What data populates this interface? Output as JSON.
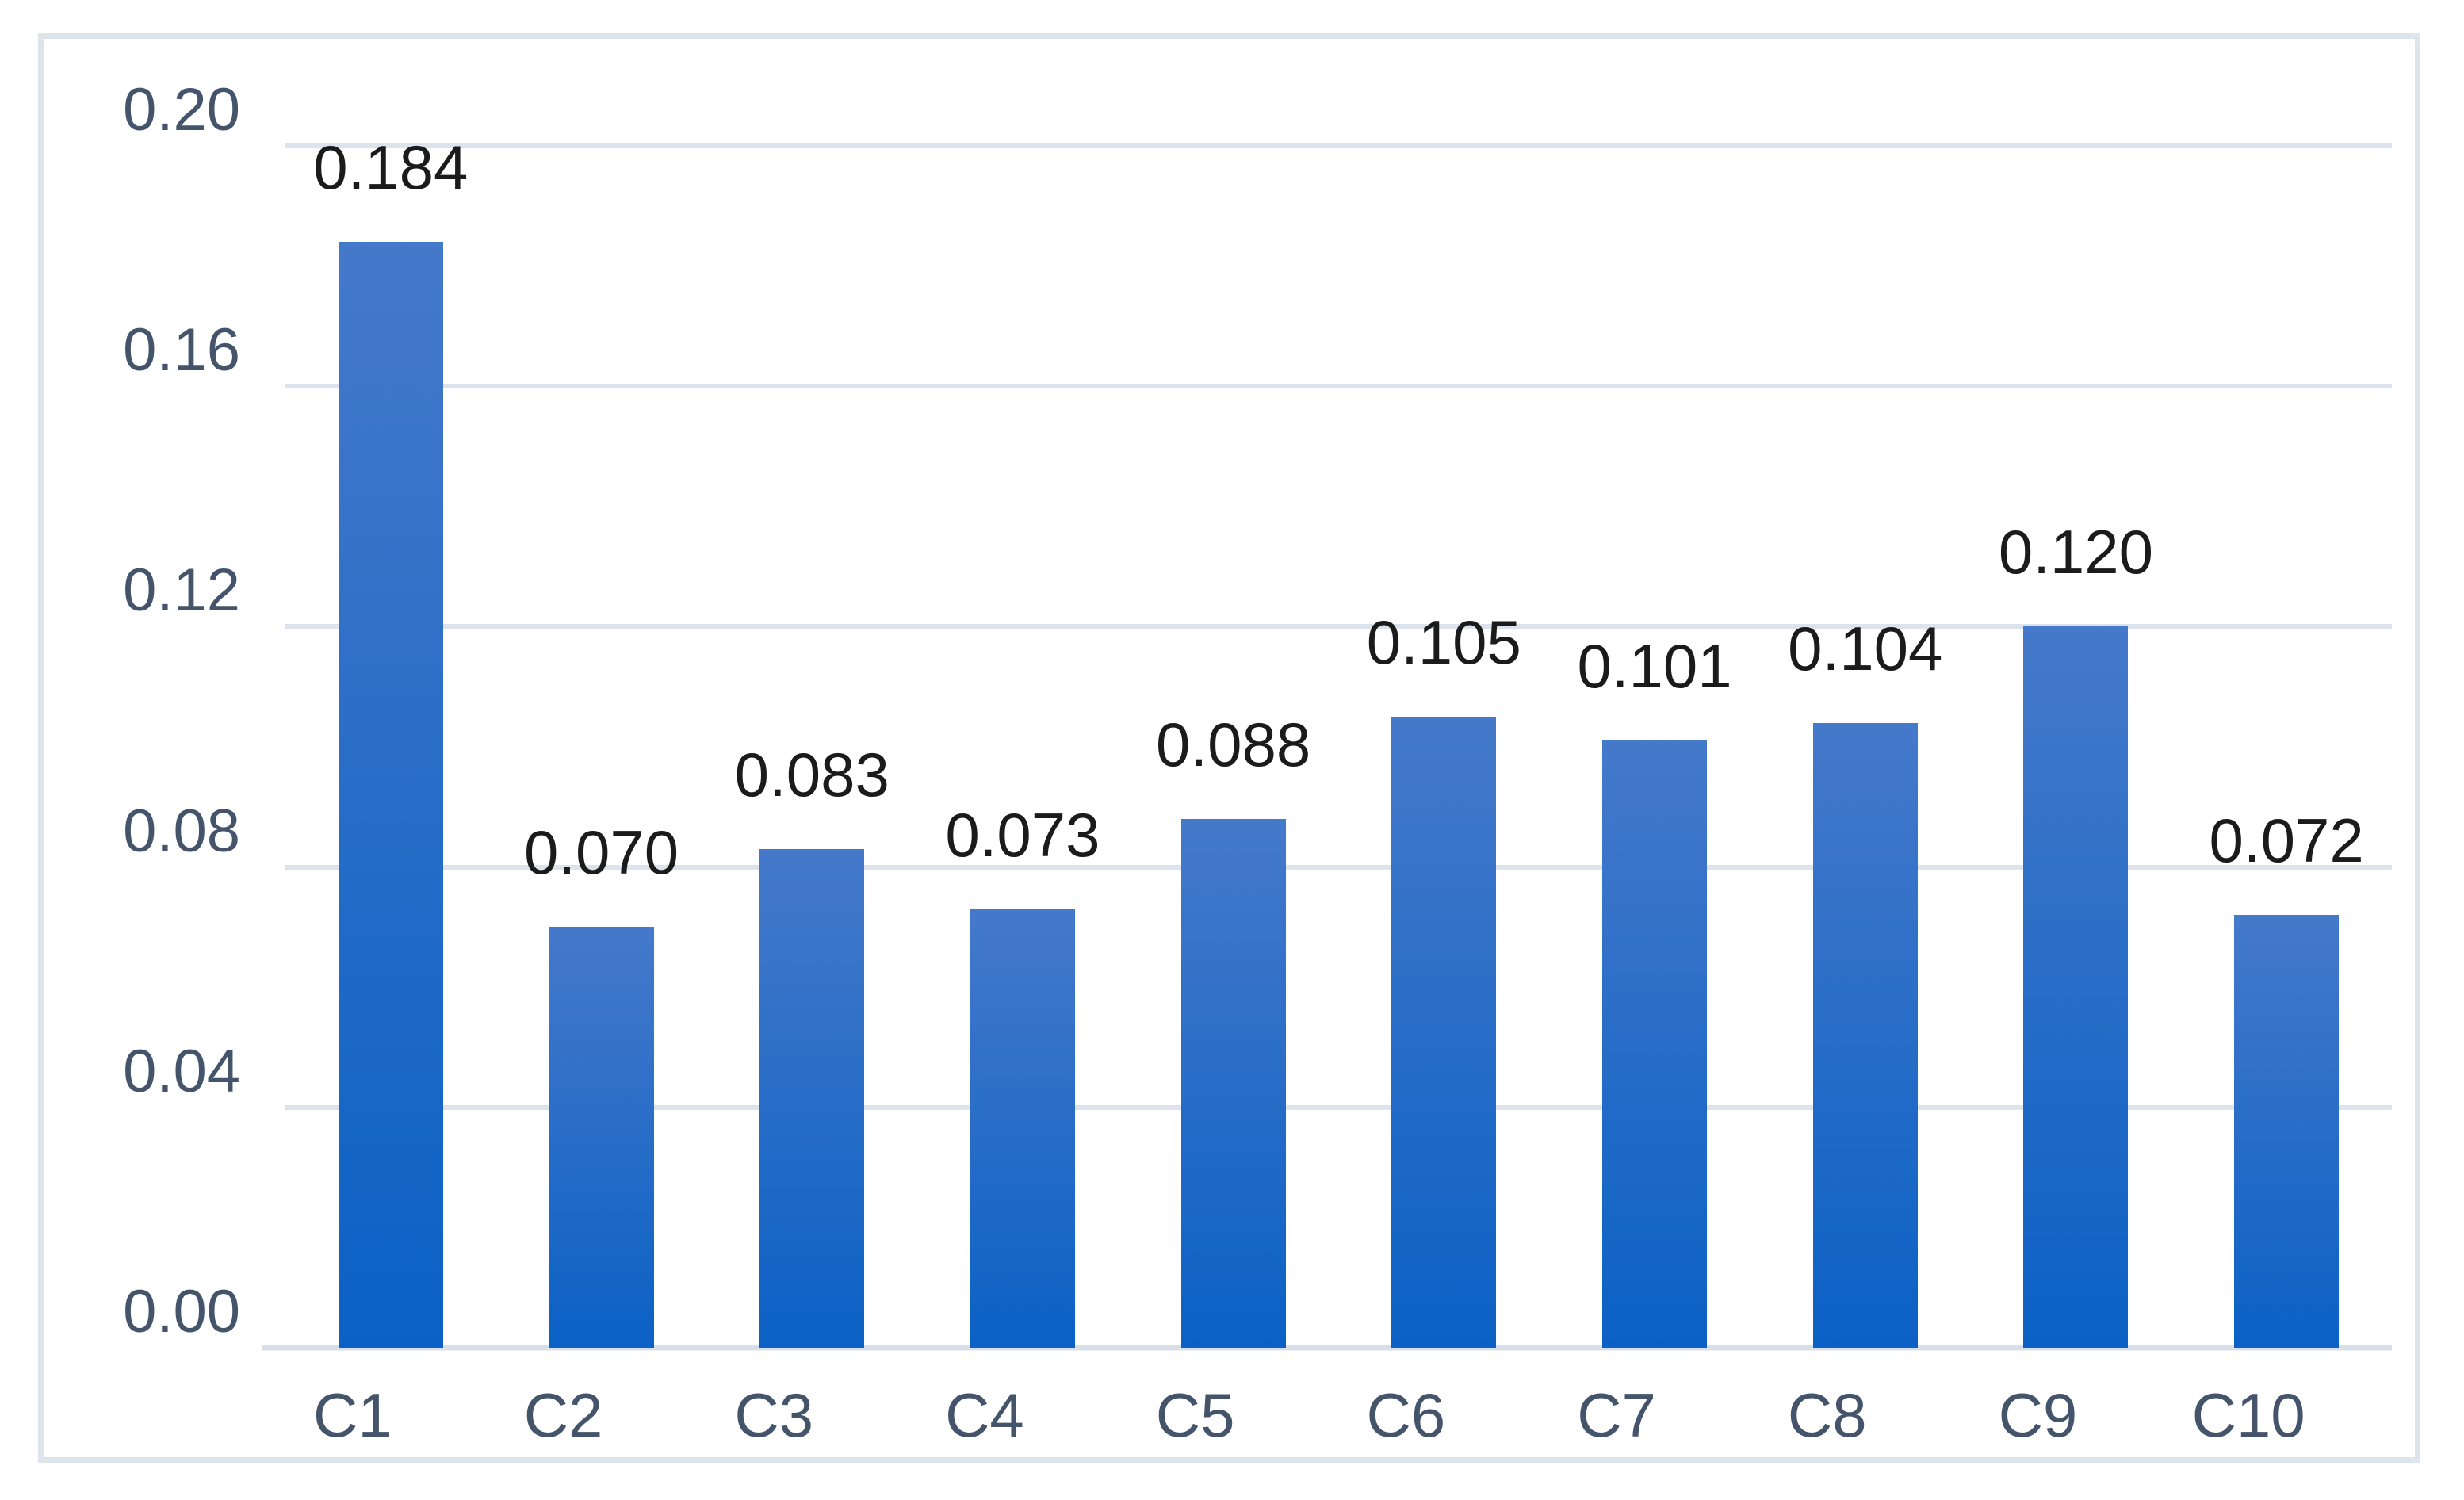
{
  "chart_data": {
    "type": "bar",
    "title": "",
    "xlabel": "",
    "ylabel": "",
    "categories": [
      "C1",
      "C2",
      "C3",
      "C4",
      "C5",
      "C6",
      "C7",
      "C8",
      "C9",
      "C10"
    ],
    "values": [
      0.184,
      0.07,
      0.083,
      0.073,
      0.088,
      0.105,
      0.101,
      0.104,
      0.12,
      0.072
    ],
    "data_labels": [
      "0.184",
      "0.070",
      "0.083",
      "0.073",
      "0.088",
      "0.105",
      "0.101",
      "0.104",
      "0.120",
      "0.072"
    ],
    "ylim": [
      0,
      0.2
    ],
    "y_ticks": [
      "0.20",
      "0.16",
      "0.12",
      "0.08",
      "0.04",
      "0.00"
    ],
    "y_tick_values": [
      0.2,
      0.16,
      0.12,
      0.08,
      0.04,
      0.0
    ],
    "grid": true,
    "legend_position": "none",
    "colors": {
      "bar_gradient_top": "#4579ca",
      "bar_gradient_bottom": "#0b61c5",
      "axis_tick_label": "#44546a",
      "data_label": "#1b1b1b",
      "gridline": "#dce3ec",
      "axis_line": "#d9dfe8",
      "frame_border": "#dee4ec",
      "background": "#ffffff"
    }
  }
}
